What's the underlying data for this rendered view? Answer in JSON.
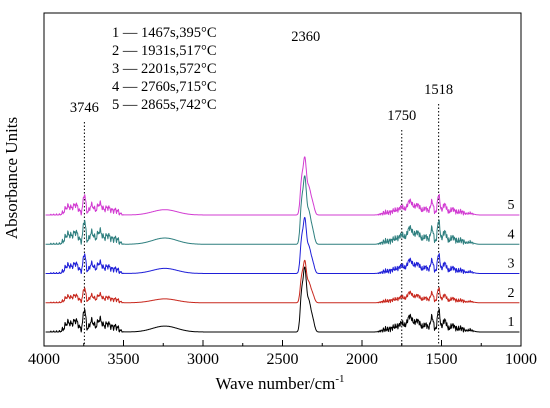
{
  "chart_data": {
    "type": "line",
    "title": "",
    "xlabel": "Wave number/cm",
    "xlabel_sup": "-1",
    "ylabel": "Absorbance Units",
    "xlim": [
      4000,
      1000
    ],
    "x_reversed": true,
    "x_ticks": [
      4000,
      3500,
      3000,
      2500,
      2000,
      1500,
      1000
    ],
    "y_ticks_shown": false,
    "grid": false,
    "legend_placement": "top-left",
    "legend": [
      {
        "id": "1",
        "text": "1 — 1467s,395°C"
      },
      {
        "id": "2",
        "text": "2 — 1931s,517°C"
      },
      {
        "id": "3",
        "text": "3 — 2201s,572°C"
      },
      {
        "id": "4",
        "text": "4 — 2760s,715°C"
      },
      {
        "id": "5",
        "text": "5 — 2865s,742°C"
      }
    ],
    "reference_lines": [
      {
        "wavenumber": 3746,
        "label": "3746"
      },
      {
        "wavenumber": 1750,
        "label": "1750"
      },
      {
        "wavenumber": 1518,
        "label": "1518"
      }
    ],
    "peak_labels": [
      {
        "wavenumber": 2360,
        "label": "2360"
      }
    ],
    "series": [
      {
        "name": "1",
        "label": "1",
        "time": "1467s",
        "temperature": "395°C",
        "color": "#000000",
        "offset": 0.0,
        "scale": 0.95
      },
      {
        "name": "2",
        "label": "2",
        "time": "1931s",
        "temperature": "517°C",
        "color": "#c8281e",
        "offset": 0.75,
        "scale": 0.62
      },
      {
        "name": "3",
        "label": "3",
        "time": "2201s",
        "temperature": "572°C",
        "color": "#1f1fd8",
        "offset": 1.5,
        "scale": 0.82
      },
      {
        "name": "4",
        "label": "4",
        "time": "2760s",
        "temperature": "715°C",
        "color": "#2e7f7f",
        "offset": 2.25,
        "scale": 1.0
      },
      {
        "name": "5",
        "label": "5",
        "time": "2865s",
        "temperature": "742°C",
        "color": "#d23cd2",
        "offset": 3.0,
        "scale": 0.85
      }
    ],
    "spectrum_bands": [
      {
        "center": 3850,
        "width": 28,
        "height": 0.25
      },
      {
        "center": 3800,
        "width": 25,
        "height": 0.3
      },
      {
        "center": 3746,
        "width": 12,
        "height": 0.62
      },
      {
        "center": 3700,
        "width": 20,
        "height": 0.3
      },
      {
        "center": 3650,
        "width": 22,
        "height": 0.34
      },
      {
        "center": 3600,
        "width": 25,
        "height": 0.22
      },
      {
        "center": 3550,
        "width": 28,
        "height": 0.14
      },
      {
        "center": 3240,
        "width": 110,
        "height": 0.16
      },
      {
        "center": 2380,
        "width": 13,
        "height": 0.95
      },
      {
        "center": 2360,
        "width": 14,
        "height": 1.55
      },
      {
        "center": 2335,
        "width": 18,
        "height": 0.8
      },
      {
        "center": 2310,
        "width": 16,
        "height": 0.3
      },
      {
        "center": 1850,
        "width": 35,
        "height": 0.07
      },
      {
        "center": 1790,
        "width": 30,
        "height": 0.14
      },
      {
        "center": 1750,
        "width": 20,
        "height": 0.22
      },
      {
        "center": 1700,
        "width": 25,
        "height": 0.42
      },
      {
        "center": 1650,
        "width": 25,
        "height": 0.3
      },
      {
        "center": 1600,
        "width": 20,
        "height": 0.2
      },
      {
        "center": 1560,
        "width": 14,
        "height": 0.4
      },
      {
        "center": 1518,
        "width": 12,
        "height": 0.6
      },
      {
        "center": 1480,
        "width": 18,
        "height": 0.32
      },
      {
        "center": 1430,
        "width": 22,
        "height": 0.18
      },
      {
        "center": 1380,
        "width": 25,
        "height": 0.1
      },
      {
        "center": 1320,
        "width": 30,
        "height": 0.05
      }
    ]
  }
}
